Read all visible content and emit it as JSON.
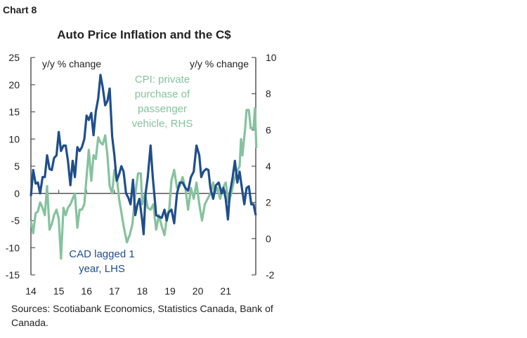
{
  "chart_label": "Chart 8",
  "sources": "Sources: Scotiabank Economics, Statistics Canada, Bank of Canada.",
  "chart_data": {
    "type": "line",
    "title": "Auto Price Inflation and the C$",
    "left_axis": {
      "label": "y/y % change",
      "range": [
        -15,
        25
      ],
      "ticks": [
        25,
        20,
        15,
        10,
        5,
        0,
        -5,
        -10,
        -15
      ]
    },
    "right_axis": {
      "label": "y/y % change",
      "range": [
        -2,
        10
      ],
      "ticks": [
        10,
        8,
        6,
        4,
        2,
        0,
        -2
      ]
    },
    "x_axis": {
      "range": [
        2014,
        2022.1
      ],
      "ticks": [
        2014,
        2015,
        2016,
        2017,
        2018,
        2019,
        2020,
        2021
      ],
      "tick_labels": [
        "14",
        "15",
        "16",
        "17",
        "18",
        "19",
        "20",
        "21"
      ]
    },
    "grid": false,
    "series": [
      {
        "name": "CAD lagged 1 year, LHS",
        "axis": "left",
        "color": "#1f4e8c",
        "x": [
          2014.0,
          2014.08,
          2014.17,
          2014.25,
          2014.33,
          2014.42,
          2014.5,
          2014.58,
          2014.67,
          2014.75,
          2014.83,
          2014.92,
          2015.0,
          2015.08,
          2015.17,
          2015.25,
          2015.33,
          2015.42,
          2015.5,
          2015.58,
          2015.67,
          2015.75,
          2015.83,
          2015.92,
          2016.0,
          2016.08,
          2016.17,
          2016.25,
          2016.33,
          2016.42,
          2016.5,
          2016.58,
          2016.67,
          2016.75,
          2016.83,
          2016.92,
          2017.0,
          2017.08,
          2017.17,
          2017.25,
          2017.33,
          2017.42,
          2017.5,
          2017.58,
          2017.67,
          2017.75,
          2017.83,
          2017.9,
          2018.0,
          2018.05,
          2018.12,
          2018.2,
          2018.3,
          2018.38,
          2018.45,
          2018.5,
          2018.6,
          2018.7,
          2018.8,
          2018.88,
          2018.95,
          2019.05,
          2019.15,
          2019.25,
          2019.35,
          2019.45,
          2019.55,
          2019.65,
          2019.75,
          2019.85,
          2019.95,
          2020.05,
          2020.12,
          2020.2,
          2020.3,
          2020.38,
          2020.45,
          2020.55,
          2020.65,
          2020.75,
          2020.85,
          2020.92,
          2021.0,
          2021.08,
          2021.15,
          2021.25,
          2021.33,
          2021.42,
          2021.5,
          2021.58,
          2021.67,
          2021.75,
          2021.83,
          2021.92,
          2022.0,
          2022.08
        ],
        "values": [
          -0.5,
          4.3,
          1.8,
          2,
          0,
          3,
          3,
          7,
          4.5,
          4.3,
          6.5,
          7,
          11.3,
          7.8,
          8.8,
          8.8,
          6,
          1.5,
          6,
          3,
          8.5,
          7.8,
          8.5,
          10,
          14.3,
          13.5,
          14.8,
          10.7,
          15,
          17.5,
          21.8,
          19.5,
          16.2,
          17,
          19.3,
          10.5,
          7,
          2.3,
          3.5,
          5,
          4,
          0,
          -0.8,
          -2,
          2.5,
          -4,
          -2,
          -1,
          -5,
          -7.5,
          0,
          3,
          8.8,
          3,
          -1,
          -4,
          -4.3,
          -4.5,
          -3,
          -5,
          -3.5,
          -3,
          -5.5,
          0,
          2,
          2,
          1,
          0.5,
          3,
          4,
          8.8,
          7,
          3,
          4,
          4.5,
          4.3,
          1,
          -1,
          1.5,
          2,
          0,
          1,
          -1,
          -4.8,
          0,
          3,
          6,
          2,
          4,
          1,
          -2,
          1,
          1.3,
          -2,
          -2,
          -4
        ]
      },
      {
        "name": "CPI: private purchase of passenger vehicle, RHS",
        "axis": "right",
        "color": "#86c29e",
        "x": [
          2014.0,
          2014.08,
          2014.17,
          2014.25,
          2014.33,
          2014.42,
          2014.5,
          2014.58,
          2014.67,
          2014.75,
          2014.83,
          2014.92,
          2015.0,
          2015.08,
          2015.17,
          2015.25,
          2015.33,
          2015.42,
          2015.5,
          2015.58,
          2015.67,
          2015.75,
          2015.83,
          2015.92,
          2016.0,
          2016.08,
          2016.17,
          2016.25,
          2016.33,
          2016.42,
          2016.5,
          2016.58,
          2016.67,
          2016.75,
          2016.83,
          2016.92,
          2017.0,
          2017.08,
          2017.17,
          2017.33,
          2017.45,
          2017.55,
          2017.65,
          2017.75,
          2017.85,
          2017.95,
          2018.0,
          2018.1,
          2018.2,
          2018.3,
          2018.4,
          2018.5,
          2018.6,
          2018.7,
          2018.8,
          2018.9,
          2018.97,
          2019.05,
          2019.15,
          2019.25,
          2019.35,
          2019.45,
          2019.55,
          2019.65,
          2019.75,
          2019.85,
          2019.95,
          2020.05,
          2020.15,
          2020.25,
          2020.35,
          2020.45,
          2020.55,
          2020.6,
          2020.7,
          2020.8,
          2020.9,
          2021.0,
          2021.1,
          2021.2,
          2021.3,
          2021.4,
          2021.5,
          2021.55,
          2021.6,
          2021.7,
          2021.75,
          2021.83,
          2021.9,
          2022.0,
          2022.05,
          2022.1
        ],
        "values": [
          1.0,
          0.3,
          1.4,
          1.5,
          2.0,
          1.7,
          1.3,
          2.9,
          0.5,
          0.8,
          1.3,
          1.6,
          1.1,
          -1.1,
          1.7,
          1.3,
          1.7,
          1.9,
          2.2,
          2.5,
          0.6,
          1.6,
          1.6,
          1.9,
          3.4,
          4.9,
          3.2,
          4.6,
          4.4,
          5.6,
          5.3,
          5.2,
          5.7,
          4.6,
          2.9,
          2.5,
          3.8,
          3.5,
          2.2,
          0.7,
          -0.2,
          0.2,
          0.8,
          2.5,
          3.6,
          3.6,
          1.9,
          2.5,
          1.7,
          1.6,
          1.9,
          0.5,
          1.3,
          0.7,
          0.2,
          1.3,
          1.6,
          3.2,
          3.8,
          2.8,
          2.9,
          3.4,
          2.8,
          1.6,
          2.8,
          2.2,
          3.1,
          1.9,
          1.0,
          1.9,
          2.2,
          2.5,
          3.1,
          2.5,
          2.8,
          2.2,
          2.8,
          3.1,
          2.0,
          2.5,
          3.2,
          3.7,
          4.0,
          5.5,
          4.6,
          6.1,
          7.1,
          7.1,
          6.1,
          6.1,
          7.2,
          5.0
        ]
      }
    ],
    "annotations": [
      {
        "text": [
          "CPI: private",
          "purchase of",
          "passenger",
          "vehicle, RHS"
        ],
        "series": 1
      },
      {
        "text": [
          "CAD lagged 1",
          "year, LHS"
        ],
        "series": 0
      }
    ]
  }
}
